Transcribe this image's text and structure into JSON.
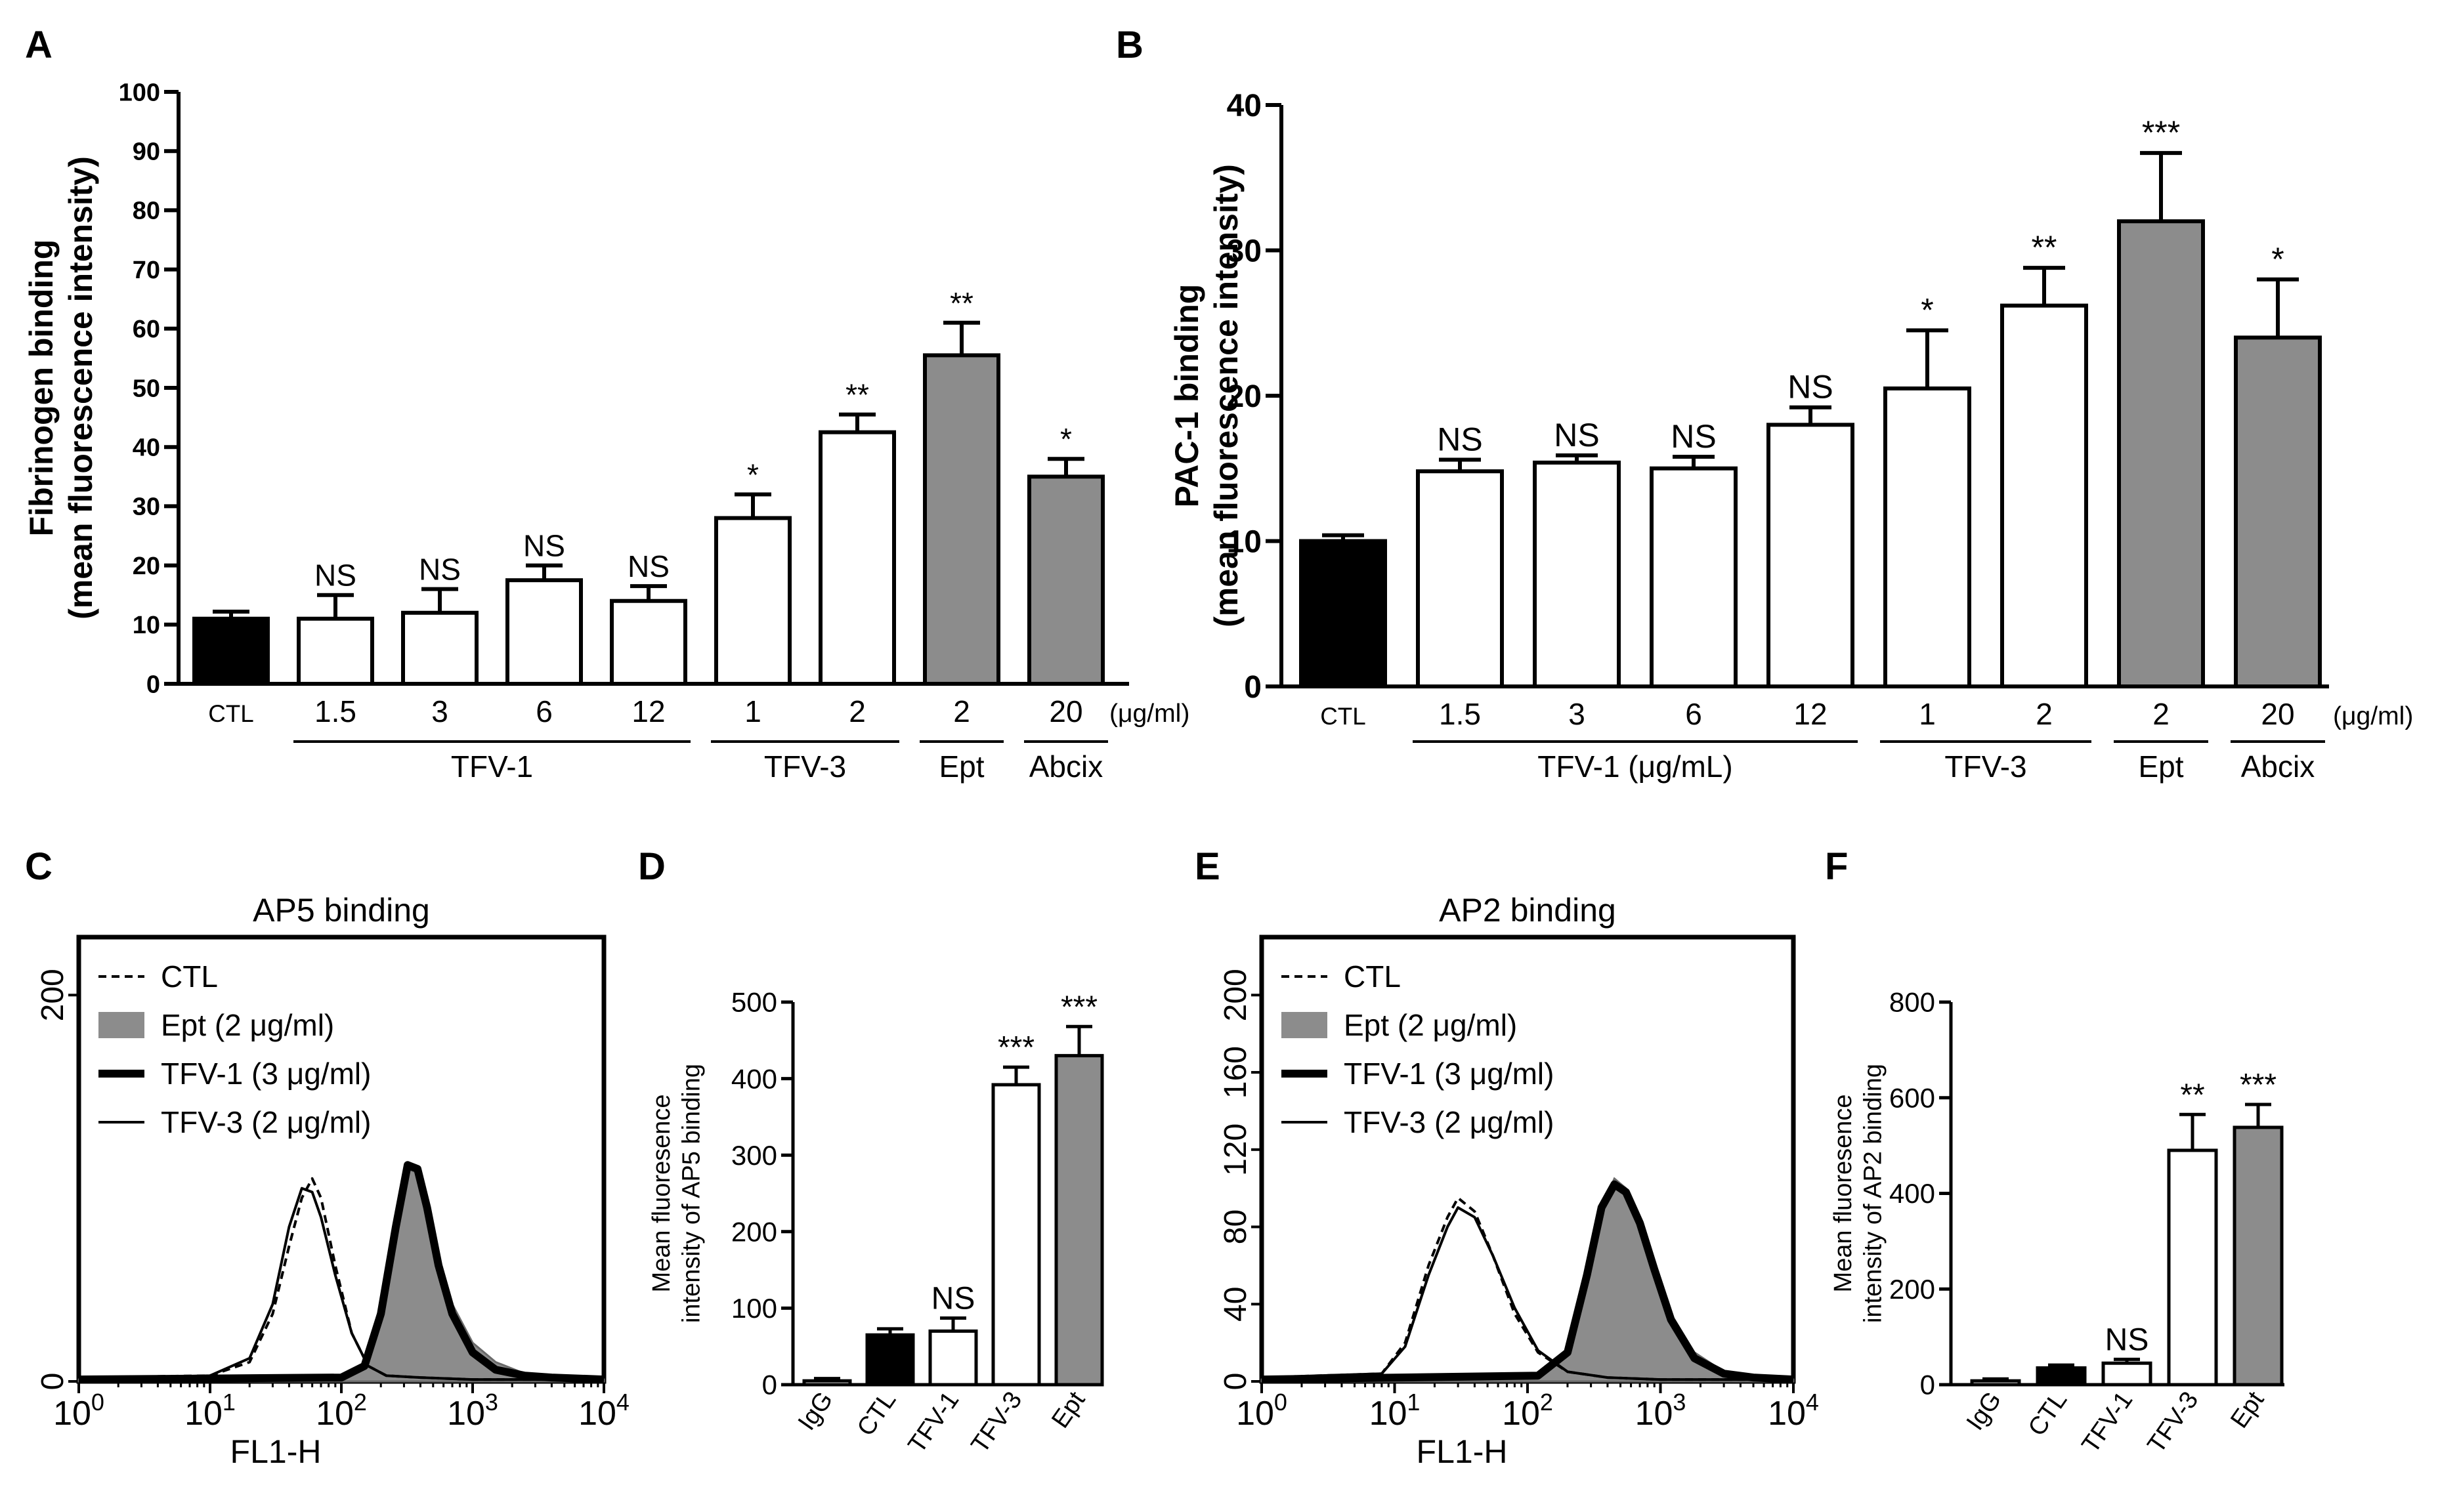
{
  "colors": {
    "black": "#000000",
    "white": "#ffffff",
    "gray": "#8c8c8c"
  },
  "chart_data": [
    {
      "panel": "A",
      "type": "bar",
      "ylabel_line1": "Fibrinogen binding",
      "ylabel_line2": "(mean fluorescence intensity)",
      "ylim": [
        0,
        100
      ],
      "yticks": [
        0,
        10,
        20,
        30,
        40,
        50,
        60,
        70,
        80,
        90,
        100
      ],
      "categories": [
        "CTL",
        "1.5",
        "3",
        "6",
        "12",
        "1",
        "2",
        "2",
        "20"
      ],
      "values": [
        11,
        11,
        12,
        17.5,
        14,
        28,
        42.5,
        55.5,
        35
      ],
      "errors": [
        1.2,
        4,
        4,
        2.5,
        2.5,
        4,
        3,
        5.5,
        3
      ],
      "fills": [
        "black",
        "white",
        "white",
        "white",
        "white",
        "white",
        "white",
        "gray",
        "gray"
      ],
      "sig": [
        "",
        "NS",
        "NS",
        "NS",
        "NS",
        "*",
        "**",
        "**",
        "*"
      ],
      "unit": "(μg/ml)",
      "groups": [
        {
          "label": "TFV-1",
          "from": 1,
          "to": 4
        },
        {
          "label": "TFV-3",
          "from": 5,
          "to": 6
        },
        {
          "label": "Ept",
          "from": 7,
          "to": 7
        },
        {
          "label": "Abcix",
          "from": 8,
          "to": 8
        }
      ]
    },
    {
      "panel": "B",
      "type": "bar",
      "ylabel_line1": "PAC-1 binding",
      "ylabel_line2": "(mean fluorescence intensity)",
      "ylim": [
        0,
        40
      ],
      "yticks": [
        0,
        10,
        20,
        30,
        40
      ],
      "categories": [
        "CTL",
        "1.5",
        "3",
        "6",
        "12",
        "1",
        "2",
        "2",
        "20"
      ],
      "values": [
        10,
        14.8,
        15.4,
        15,
        18,
        20.5,
        26.2,
        32,
        24
      ],
      "errors": [
        0.4,
        0.8,
        0.5,
        0.8,
        1.2,
        4,
        2.6,
        4.7,
        4
      ],
      "fills": [
        "black",
        "white",
        "white",
        "white",
        "white",
        "white",
        "white",
        "gray",
        "gray"
      ],
      "sig": [
        "",
        "NS",
        "NS",
        "NS",
        "NS",
        "*",
        "**",
        "***",
        "*"
      ],
      "unit": "(μg/ml)",
      "groups": [
        {
          "label": "TFV-1 (μg/mL)",
          "from": 1,
          "to": 4
        },
        {
          "label": "TFV-3",
          "from": 5,
          "to": 6
        },
        {
          "label": "Ept",
          "from": 7,
          "to": 7
        },
        {
          "label": "Abcix",
          "from": 8,
          "to": 8
        }
      ]
    },
    {
      "panel": "C",
      "type": "line",
      "title": "AP5 binding",
      "xlabel": "FL1-H",
      "xscale": "log",
      "xlim": [
        1,
        10000
      ],
      "ylim": [
        0,
        230
      ],
      "yticks": [
        0,
        200
      ],
      "legend": [
        "CTL",
        "Ept (2 μg/ml)",
        "TFV-1 (3 μg/ml)",
        "TFV-3 (2 μg/ml)"
      ],
      "series": [
        {
          "name": "CTL",
          "style": "dashed",
          "x": [
            1,
            10,
            20,
            30,
            40,
            50,
            60,
            70,
            90,
            120,
            160,
            220,
            400,
            1000,
            10000
          ],
          "y": [
            2,
            3,
            10,
            35,
            70,
            95,
            105,
            95,
            60,
            25,
            8,
            3,
            2,
            1,
            1
          ]
        },
        {
          "name": "Ept (2 μg/ml)",
          "style": "filled",
          "x": [
            1,
            100,
            150,
            200,
            260,
            320,
            380,
            450,
            550,
            700,
            1000,
            1500,
            2500,
            4000,
            10000
          ],
          "y": [
            1,
            2,
            8,
            35,
            80,
            110,
            108,
            92,
            65,
            40,
            20,
            10,
            4,
            2,
            1
          ]
        },
        {
          "name": "TFV-1 (3 μg/ml)",
          "style": "thick",
          "x": [
            1,
            100,
            150,
            200,
            260,
            320,
            380,
            450,
            550,
            700,
            1000,
            1500,
            2500,
            4000,
            10000
          ],
          "y": [
            1,
            2,
            8,
            35,
            80,
            112,
            110,
            90,
            60,
            35,
            15,
            6,
            3,
            2,
            1
          ]
        },
        {
          "name": "TFV-3 (2 μg/ml)",
          "style": "thin",
          "x": [
            1,
            10,
            20,
            30,
            40,
            50,
            60,
            70,
            90,
            120,
            160,
            220,
            400,
            1000,
            10000
          ],
          "y": [
            1,
            3,
            12,
            40,
            80,
            100,
            98,
            85,
            55,
            25,
            8,
            3,
            2,
            1,
            1
          ]
        }
      ]
    },
    {
      "panel": "D",
      "type": "bar",
      "ylabel_line1": "Mean fluoresence",
      "ylabel_line2": "intensity of AP5 binding",
      "ylim": [
        0,
        500
      ],
      "yticks": [
        0,
        100,
        200,
        300,
        400,
        500
      ],
      "categories": [
        "IgG",
        "CTL",
        "TFV-1",
        "TFV-3",
        "Ept"
      ],
      "values": [
        5,
        65,
        70,
        392,
        430
      ],
      "errors": [
        3,
        8,
        17,
        23,
        38
      ],
      "fills": [
        "white",
        "black",
        "white",
        "white",
        "gray"
      ],
      "sig": [
        "",
        "",
        "NS",
        "***",
        "***"
      ]
    },
    {
      "panel": "E",
      "type": "line",
      "title": "AP2 binding",
      "xlabel": "FL1-H",
      "xscale": "log",
      "xlim": [
        1,
        10000
      ],
      "ylim": [
        0,
        230
      ],
      "yticks": [
        0,
        40,
        80,
        120,
        160,
        200
      ],
      "legend": [
        "CTL",
        "Ept (2 μg/ml)",
        "TFV-1 (3 μg/ml)",
        "TFV-3 (2 μg/ml)"
      ],
      "series": [
        {
          "name": "CTL",
          "style": "dashed",
          "x": [
            1,
            8,
            12,
            18,
            25,
            30,
            40,
            55,
            80,
            120,
            200,
            400,
            1000,
            10000
          ],
          "y": [
            2,
            4,
            20,
            60,
            85,
            95,
            88,
            65,
            35,
            15,
            5,
            2,
            1,
            1
          ]
        },
        {
          "name": "Ept (2 μg/ml)",
          "style": "filled",
          "x": [
            1,
            120,
            200,
            280,
            360,
            450,
            550,
            700,
            900,
            1200,
            1800,
            3000,
            5000,
            10000
          ],
          "y": [
            1,
            3,
            15,
            55,
            90,
            105,
            100,
            85,
            60,
            35,
            15,
            5,
            2,
            1
          ]
        },
        {
          "name": "TFV-1 (3 μg/ml)",
          "style": "thick",
          "x": [
            1,
            120,
            200,
            280,
            360,
            450,
            550,
            700,
            900,
            1200,
            1800,
            3000,
            5000,
            10000
          ],
          "y": [
            1,
            3,
            15,
            55,
            90,
            102,
            98,
            82,
            58,
            32,
            12,
            4,
            2,
            1
          ]
        },
        {
          "name": "TFV-3 (2 μg/ml)",
          "style": "thin",
          "x": [
            1,
            8,
            12,
            18,
            25,
            30,
            40,
            55,
            80,
            120,
            200,
            400,
            1000,
            10000
          ],
          "y": [
            2,
            4,
            18,
            55,
            80,
            90,
            85,
            65,
            38,
            16,
            5,
            2,
            1,
            1
          ]
        }
      ]
    },
    {
      "panel": "F",
      "type": "bar",
      "ylabel_line1": "Mean fluoresence",
      "ylabel_line2": "intensity of AP2 binding",
      "ylim": [
        0,
        800
      ],
      "yticks": [
        0,
        200,
        400,
        600,
        800
      ],
      "categories": [
        "IgG",
        "CTL",
        "TFV-1",
        "TFV-3",
        "Ept"
      ],
      "values": [
        8,
        35,
        45,
        490,
        538
      ],
      "errors": [
        4,
        6,
        8,
        75,
        48
      ],
      "fills": [
        "white",
        "black",
        "white",
        "white",
        "gray"
      ],
      "sig": [
        "",
        "",
        "NS",
        "**",
        "***"
      ]
    }
  ]
}
